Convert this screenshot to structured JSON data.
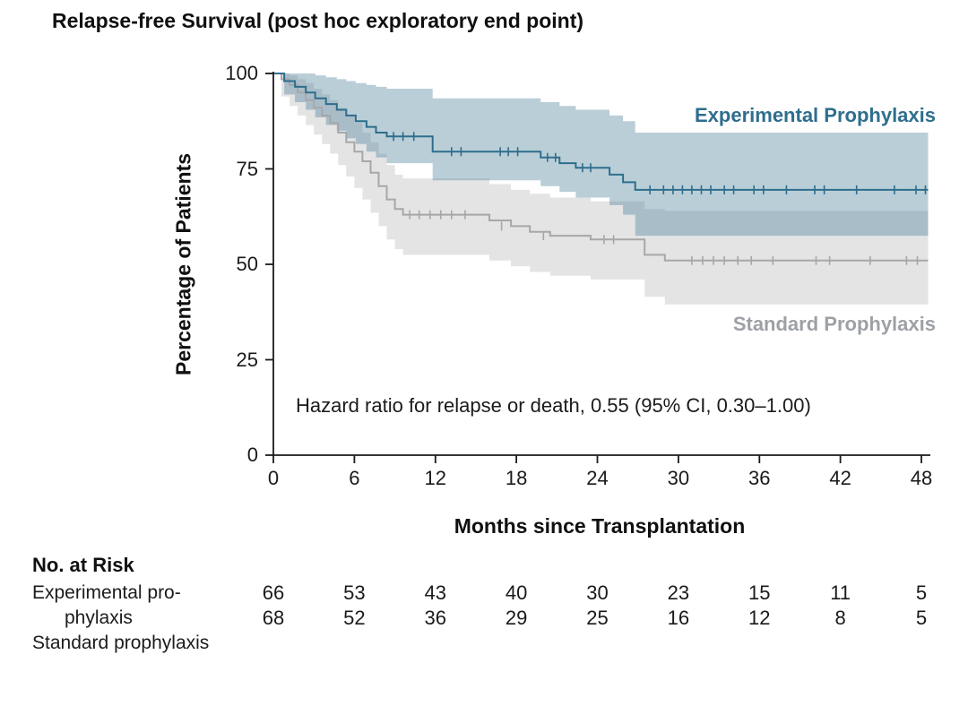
{
  "chart_data": {
    "type": "line",
    "subtype": "kaplan-meier",
    "title": "Relapse-free Survival (post hoc exploratory end point)",
    "xlabel": "Months since Transplantation",
    "ylabel": "Percentage of Patients",
    "xlim": [
      0,
      48
    ],
    "ylim": [
      0,
      100
    ],
    "x_ticks": [
      0,
      6,
      12,
      18,
      24,
      30,
      36,
      42,
      48
    ],
    "y_ticks": [
      0,
      25,
      50,
      75,
      100
    ],
    "grid": false,
    "legend_position": "labels-on-chart",
    "annotation": "Hazard ratio for relapse or death, 0.55 (95% CI, 0.30–1.00)",
    "series": [
      {
        "id": "experimental",
        "name": "Experimental Prophylaxis",
        "line_color": "#2e6e8d",
        "label_color": "#2e6e8d",
        "band_color": "#4a7d99",
        "band_opacity": 0.38,
        "steps": [
          [
            0,
            100
          ],
          [
            0.8,
            98
          ],
          [
            1.6,
            96.5
          ],
          [
            2.4,
            95
          ],
          [
            3.1,
            93.5
          ],
          [
            3.9,
            92
          ],
          [
            4.7,
            90.5
          ],
          [
            5.4,
            89
          ],
          [
            6.1,
            87.5
          ],
          [
            6.9,
            86
          ],
          [
            7.6,
            84.5
          ],
          [
            8.4,
            83.5
          ],
          [
            11.8,
            79.5
          ],
          [
            19.8,
            78
          ],
          [
            21.2,
            76.5
          ],
          [
            22.4,
            75.3
          ],
          [
            24.9,
            73.5
          ],
          [
            25.9,
            71.5
          ],
          [
            26.8,
            69.5
          ],
          [
            48.5,
            69.5
          ]
        ],
        "ci_upper": [
          [
            0,
            100
          ],
          [
            2.4,
            100
          ],
          [
            3.1,
            99.5
          ],
          [
            3.9,
            99
          ],
          [
            4.7,
            98.5
          ],
          [
            5.4,
            98
          ],
          [
            6.1,
            97.5
          ],
          [
            6.9,
            97
          ],
          [
            7.6,
            96.5
          ],
          [
            8.4,
            96
          ],
          [
            11.8,
            93.5
          ],
          [
            19.8,
            92.5
          ],
          [
            21.2,
            91.5
          ],
          [
            22.4,
            90.5
          ],
          [
            24.9,
            89
          ],
          [
            25.9,
            87.5
          ],
          [
            26.8,
            84.5
          ],
          [
            48.5,
            84.5
          ]
        ],
        "ci_lower": [
          [
            0,
            100
          ],
          [
            0.8,
            94.5
          ],
          [
            1.6,
            92.5
          ],
          [
            2.4,
            90.5
          ],
          [
            3.1,
            88.5
          ],
          [
            3.9,
            86.5
          ],
          [
            4.7,
            85
          ],
          [
            5.4,
            83
          ],
          [
            6.1,
            81.5
          ],
          [
            6.9,
            79.5
          ],
          [
            7.6,
            78
          ],
          [
            8.4,
            76.5
          ],
          [
            11.8,
            72
          ],
          [
            19.8,
            70.5
          ],
          [
            21.2,
            69
          ],
          [
            22.4,
            67.5
          ],
          [
            24.9,
            65.5
          ],
          [
            25.9,
            63
          ],
          [
            26.8,
            57.5
          ],
          [
            48.5,
            57.5
          ]
        ],
        "censor_marks": [
          [
            8.9,
            83.5
          ],
          [
            9.6,
            83.5
          ],
          [
            10.4,
            83.5
          ],
          [
            13.2,
            79.5
          ],
          [
            13.9,
            79.5
          ],
          [
            16.8,
            79.5
          ],
          [
            17.4,
            79.5
          ],
          [
            18.1,
            79.5
          ],
          [
            20.3,
            78
          ],
          [
            20.9,
            78
          ],
          [
            22.9,
            75.3
          ],
          [
            23.5,
            75.3
          ],
          [
            27.9,
            69.5
          ],
          [
            28.9,
            69.5
          ],
          [
            29.6,
            69.5
          ],
          [
            30.3,
            69.5
          ],
          [
            31,
            69.5
          ],
          [
            31.7,
            69.5
          ],
          [
            32.4,
            69.5
          ],
          [
            33.4,
            69.5
          ],
          [
            34.1,
            69.5
          ],
          [
            35.6,
            69.5
          ],
          [
            36.3,
            69.5
          ],
          [
            38,
            69.5
          ],
          [
            40.1,
            69.5
          ],
          [
            40.8,
            69.5
          ],
          [
            43.2,
            69.5
          ],
          [
            46,
            69.5
          ],
          [
            47.6,
            69.5
          ],
          [
            48.3,
            69.5
          ]
        ]
      },
      {
        "id": "standard",
        "name": "Standard Prophylaxis",
        "line_color": "#a6a7a9",
        "label_color": "#9da1a5",
        "band_color": "#e4e4e5",
        "band_opacity": 1,
        "steps": [
          [
            0,
            100
          ],
          [
            0.6,
            98.5
          ],
          [
            1.2,
            97
          ],
          [
            1.8,
            95
          ],
          [
            2.4,
            93
          ],
          [
            3,
            91
          ],
          [
            3.6,
            89
          ],
          [
            4.2,
            87
          ],
          [
            4.8,
            84.5
          ],
          [
            5.4,
            82
          ],
          [
            6,
            79.5
          ],
          [
            6.6,
            77
          ],
          [
            7.2,
            74
          ],
          [
            7.8,
            70.5
          ],
          [
            8.4,
            67
          ],
          [
            9,
            64.5
          ],
          [
            9.6,
            63
          ],
          [
            16,
            61.5
          ],
          [
            17.6,
            60
          ],
          [
            19,
            58.5
          ],
          [
            20.5,
            57.5
          ],
          [
            23.5,
            56.5
          ],
          [
            27.5,
            52.5
          ],
          [
            29,
            51
          ],
          [
            48.5,
            51
          ]
        ],
        "ci_upper": [
          [
            0,
            100
          ],
          [
            0.6,
            100
          ],
          [
            1.2,
            99.5
          ],
          [
            1.8,
            98.5
          ],
          [
            2.4,
            97.5
          ],
          [
            3,
            96
          ],
          [
            3.6,
            94.5
          ],
          [
            4.2,
            93
          ],
          [
            4.8,
            91
          ],
          [
            5.4,
            89
          ],
          [
            6,
            87
          ],
          [
            6.6,
            84.5
          ],
          [
            7.2,
            82
          ],
          [
            7.8,
            79
          ],
          [
            8.4,
            76
          ],
          [
            9,
            73.5
          ],
          [
            9.6,
            72.5
          ],
          [
            16,
            71
          ],
          [
            17.6,
            69.5
          ],
          [
            19,
            68.5
          ],
          [
            20.5,
            67.5
          ],
          [
            23.5,
            66.5
          ],
          [
            27.5,
            64.5
          ],
          [
            29,
            64
          ],
          [
            48.5,
            64
          ]
        ],
        "ci_lower": [
          [
            0,
            100
          ],
          [
            0.6,
            94
          ],
          [
            1.2,
            91.5
          ],
          [
            1.8,
            89
          ],
          [
            2.4,
            86.5
          ],
          [
            3,
            84
          ],
          [
            3.6,
            81.5
          ],
          [
            4.2,
            79
          ],
          [
            4.8,
            76
          ],
          [
            5.4,
            73
          ],
          [
            6,
            70
          ],
          [
            6.6,
            67
          ],
          [
            7.2,
            63.5
          ],
          [
            7.8,
            60
          ],
          [
            8.4,
            56.5
          ],
          [
            9,
            54
          ],
          [
            9.6,
            52.5
          ],
          [
            16,
            51
          ],
          [
            17.6,
            49.5
          ],
          [
            19,
            48
          ],
          [
            20.5,
            47
          ],
          [
            23.5,
            46
          ],
          [
            27.5,
            41.5
          ],
          [
            29,
            39.5
          ],
          [
            48.5,
            39.5
          ]
        ],
        "censor_marks": [
          [
            10.1,
            63
          ],
          [
            10.8,
            63
          ],
          [
            11.6,
            63
          ],
          [
            12.4,
            63
          ],
          [
            13.2,
            63
          ],
          [
            14.2,
            63
          ],
          [
            16.9,
            60
          ],
          [
            20,
            57.5
          ],
          [
            24.5,
            56.5
          ],
          [
            25.2,
            56.5
          ],
          [
            31,
            51
          ],
          [
            31.8,
            51
          ],
          [
            32.6,
            51
          ],
          [
            33.4,
            51
          ],
          [
            34.4,
            51
          ],
          [
            35.4,
            51
          ],
          [
            37,
            51
          ],
          [
            40.2,
            51
          ],
          [
            41.2,
            51
          ],
          [
            44.2,
            51
          ],
          [
            46.9,
            51
          ],
          [
            47.7,
            51
          ]
        ]
      }
    ]
  },
  "risk_table": {
    "heading": "No. at Risk",
    "label_lines": [
      "Experimental pro-",
      "phylaxis",
      "Standard prophylaxis"
    ],
    "rows": [
      {
        "name": "Experimental prophylaxis",
        "counts": [
          66,
          53,
          43,
          40,
          30,
          23,
          15,
          11,
          5
        ]
      },
      {
        "name": "Standard prophylaxis",
        "counts": [
          68,
          52,
          36,
          29,
          25,
          16,
          12,
          8,
          5
        ]
      }
    ]
  }
}
